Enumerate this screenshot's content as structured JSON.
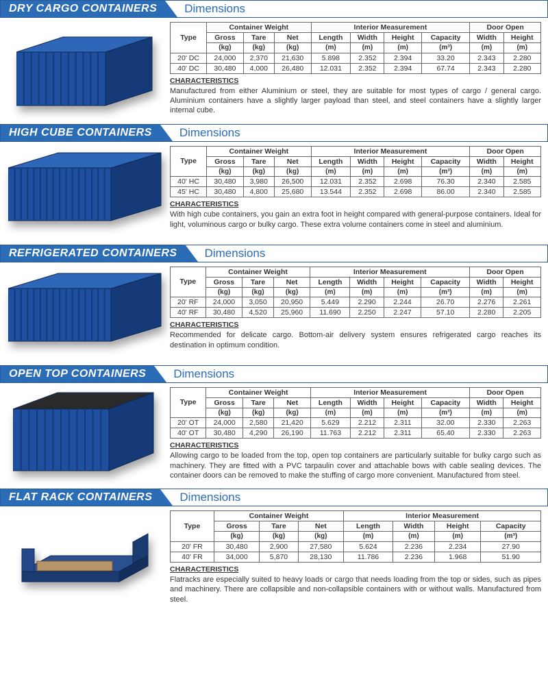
{
  "colors": {
    "accent": "#2a6cb5",
    "border": "#2a5a9a",
    "containerBlue": "#1f4fa0"
  },
  "labels": {
    "dimensions": "Dimensions",
    "characteristics": "CHARACTERISTICS",
    "type": "Type"
  },
  "groupHeaders": {
    "weight": "Container Weight",
    "interior": "Interior Measurement",
    "door": "Door Open"
  },
  "columns": {
    "gross": {
      "label": "Gross",
      "unit": "(kg)"
    },
    "tare": {
      "label": "Tare",
      "unit": "(kg)"
    },
    "net": {
      "label": "Net",
      "unit": "(kg)"
    },
    "length": {
      "label": "Length",
      "unit": "(m)"
    },
    "width": {
      "label": "Width",
      "unit": "(m)"
    },
    "height": {
      "label": "Height",
      "unit": "(m)"
    },
    "capacity": {
      "label": "Capacity",
      "unit": "(m³)"
    },
    "doorWidth": {
      "label": "Width",
      "unit": "(m)"
    },
    "doorHeight": {
      "label": "Height",
      "unit": "(m)"
    }
  },
  "sections": [
    {
      "title": "DRY CARGO CONTAINERS",
      "hasDoor": true,
      "rows": [
        {
          "type": "20' DC",
          "gross": "24,000",
          "tare": "2,370",
          "net": "21,630",
          "length": "5.898",
          "width": "2.352",
          "height": "2.394",
          "capacity": "33.20",
          "doorWidth": "2.343",
          "doorHeight": "2.280"
        },
        {
          "type": "40' DC",
          "gross": "30,480",
          "tare": "4,000",
          "net": "26,480",
          "length": "12.031",
          "width": "2.352",
          "height": "2.394",
          "capacity": "67.74",
          "doorWidth": "2.343",
          "doorHeight": "2.280"
        }
      ],
      "characteristics": "Manufactured from either Aluminium or steel, they are suitable for most types of cargo / general cargo. Aluminium containers have a slightly larger payload than steel, and steel containers have a slightly larger internal cube."
    },
    {
      "title": "HIGH CUBE CONTAINERS",
      "hasDoor": true,
      "rows": [
        {
          "type": "40' HC",
          "gross": "30,480",
          "tare": "3,980",
          "net": "26,500",
          "length": "12.031",
          "width": "2.352",
          "height": "2.698",
          "capacity": "76.30",
          "doorWidth": "2.340",
          "doorHeight": "2.585"
        },
        {
          "type": "45' HC",
          "gross": "30,480",
          "tare": "4,800",
          "net": "25,680",
          "length": "13.544",
          "width": "2.352",
          "height": "2.698",
          "capacity": "86.00",
          "doorWidth": "2.340",
          "doorHeight": "2.585"
        }
      ],
      "characteristics": "With high cube containers, you gain an extra foot in height compared with general-purpose containers. Ideal for light, voluminous cargo or bulky cargo. These extra volume containers come in steel and aluminium."
    },
    {
      "title": "REFRIGERATED CONTAINERS",
      "hasDoor": true,
      "rows": [
        {
          "type": "20' RF",
          "gross": "24,000",
          "tare": "3,050",
          "net": "20,950",
          "length": "5.449",
          "width": "2.290",
          "height": "2.244",
          "capacity": "26.70",
          "doorWidth": "2.276",
          "doorHeight": "2.261"
        },
        {
          "type": "40' RF",
          "gross": "30,480",
          "tare": "4,520",
          "net": "25,960",
          "length": "11.690",
          "width": "2.250",
          "height": "2.247",
          "capacity": "57.10",
          "doorWidth": "2.280",
          "doorHeight": "2.205"
        }
      ],
      "characteristics": "Recommended for delicate cargo. Bottom-air delivery system ensures refrigerated cargo reaches its destination in optimum condition."
    },
    {
      "title": "OPEN TOP CONTAINERS",
      "hasDoor": true,
      "rows": [
        {
          "type": "20' OT",
          "gross": "24,000",
          "tare": "2,580",
          "net": "21,420",
          "length": "5.629",
          "width": "2.212",
          "height": "2.311",
          "capacity": "32.00",
          "doorWidth": "2.330",
          "doorHeight": "2.263"
        },
        {
          "type": "40' OT",
          "gross": "30,480",
          "tare": "4,290",
          "net": "26,190",
          "length": "11.763",
          "width": "2.212",
          "height": "2.311",
          "capacity": "65.40",
          "doorWidth": "2.330",
          "doorHeight": "2.263"
        }
      ],
      "characteristics": "Allowing cargo to be loaded from the top, open top containers are particularly suitable for bulky cargo such as machinery. They are fitted with a PVC tarpaulin cover and attachable bows with cable sealing devices. The container doors can be removed to make the stuffing of cargo more convenient. Manufactured from steel."
    },
    {
      "title": "FLAT RACK CONTAINERS",
      "hasDoor": false,
      "rows": [
        {
          "type": "20' FR",
          "gross": "30,480",
          "tare": "2,900",
          "net": "27,580",
          "length": "5.624",
          "width": "2.236",
          "height": "2.234",
          "capacity": "27.90"
        },
        {
          "type": "40' FR",
          "gross": "34,000",
          "tare": "5,870",
          "net": "28,130",
          "length": "11.786",
          "width": "2.236",
          "height": "1.968",
          "capacity": "51.90"
        }
      ],
      "characteristics": "Flatracks are especially suited to heavy loads or cargo that needs loading from the top or sides, such as pipes and machinery. There are collapsible and non-collapsible containers with or without walls. Manufactured from steel."
    }
  ]
}
